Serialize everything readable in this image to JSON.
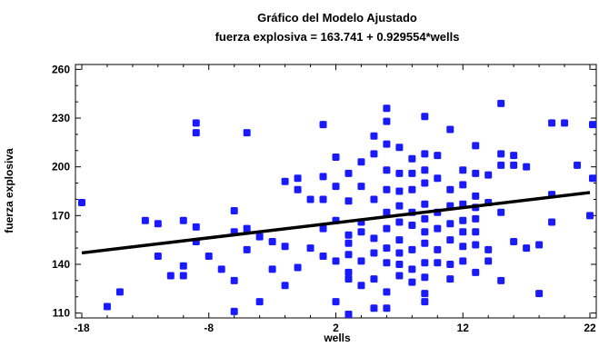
{
  "chart_data": {
    "type": "scatter",
    "title": "Gráfico del Modelo Ajustado",
    "subtitle": "fuerza explosiva = 163.741 + 0.929554*wells",
    "xlabel": "wells",
    "ylabel": "fuerza explosiva",
    "xlim": [
      -18.5,
      22.5
    ],
    "ylim": [
      107,
      263
    ],
    "xticks": [
      -18,
      -8,
      2,
      12,
      22
    ],
    "yticks": [
      110,
      140,
      170,
      200,
      230,
      260
    ],
    "grid": false,
    "point_color": "#1a1aff",
    "fit_color": "#000000",
    "fit_line": {
      "intercept": 163.741,
      "slope": 0.929554
    },
    "points": [
      [
        -18,
        178
      ],
      [
        -16,
        114
      ],
      [
        -15,
        123
      ],
      [
        -13,
        167
      ],
      [
        -12,
        165
      ],
      [
        -12,
        145
      ],
      [
        -11,
        133
      ],
      [
        -10,
        167
      ],
      [
        -10,
        139
      ],
      [
        -10,
        133
      ],
      [
        -9,
        227
      ],
      [
        -9,
        221
      ],
      [
        -9,
        163
      ],
      [
        -9,
        154
      ],
      [
        -8,
        145
      ],
      [
        -7,
        137
      ],
      [
        -6,
        173
      ],
      [
        -6,
        160
      ],
      [
        -6,
        130
      ],
      [
        -6,
        111
      ],
      [
        -5,
        221
      ],
      [
        -5,
        162
      ],
      [
        -5,
        149
      ],
      [
        -4,
        157
      ],
      [
        -4,
        117
      ],
      [
        -3,
        154
      ],
      [
        -3,
        137
      ],
      [
        -2,
        191
      ],
      [
        -2,
        151
      ],
      [
        -2,
        127
      ],
      [
        -1,
        193
      ],
      [
        -1,
        186
      ],
      [
        -1,
        138
      ],
      [
        0,
        180
      ],
      [
        0,
        150
      ],
      [
        1,
        226
      ],
      [
        1,
        194
      ],
      [
        1,
        180
      ],
      [
        1,
        162
      ],
      [
        1,
        145
      ],
      [
        2,
        206
      ],
      [
        2,
        188
      ],
      [
        2,
        167
      ],
      [
        2,
        142
      ],
      [
        2,
        117
      ],
      [
        3,
        196
      ],
      [
        3,
        179
      ],
      [
        3,
        158
      ],
      [
        3,
        153
      ],
      [
        3,
        146
      ],
      [
        3,
        135
      ],
      [
        3,
        131
      ],
      [
        3,
        109
      ],
      [
        4,
        203
      ],
      [
        4,
        188
      ],
      [
        4,
        166
      ],
      [
        4,
        160
      ],
      [
        4,
        142
      ],
      [
        4,
        127
      ],
      [
        5,
        219
      ],
      [
        5,
        208
      ],
      [
        5,
        180
      ],
      [
        5,
        156
      ],
      [
        5,
        147
      ],
      [
        5,
        131
      ],
      [
        5,
        113
      ],
      [
        6,
        236
      ],
      [
        6,
        228
      ],
      [
        6,
        214
      ],
      [
        6,
        198
      ],
      [
        6,
        186
      ],
      [
        6,
        172
      ],
      [
        6,
        162
      ],
      [
        6,
        150
      ],
      [
        6,
        141
      ],
      [
        6,
        123
      ],
      [
        6,
        113
      ],
      [
        7,
        212
      ],
      [
        7,
        196
      ],
      [
        7,
        185
      ],
      [
        7,
        176
      ],
      [
        7,
        166
      ],
      [
        7,
        155
      ],
      [
        7,
        147
      ],
      [
        7,
        140
      ],
      [
        7,
        133
      ],
      [
        8,
        205
      ],
      [
        8,
        196
      ],
      [
        8,
        186
      ],
      [
        8,
        172
      ],
      [
        8,
        164
      ],
      [
        8,
        149
      ],
      [
        8,
        137
      ],
      [
        8,
        129
      ],
      [
        9,
        231
      ],
      [
        9,
        208
      ],
      [
        9,
        198
      ],
      [
        9,
        190
      ],
      [
        9,
        177
      ],
      [
        9,
        168
      ],
      [
        9,
        160
      ],
      [
        9,
        153
      ],
      [
        9,
        141
      ],
      [
        9,
        132
      ],
      [
        9,
        122
      ],
      [
        9,
        117
      ],
      [
        10,
        207
      ],
      [
        10,
        193
      ],
      [
        10,
        172
      ],
      [
        10,
        162
      ],
      [
        10,
        149
      ],
      [
        10,
        141
      ],
      [
        11,
        223
      ],
      [
        11,
        186
      ],
      [
        11,
        176
      ],
      [
        11,
        165
      ],
      [
        11,
        155
      ],
      [
        11,
        140
      ],
      [
        11,
        131
      ],
      [
        12,
        198
      ],
      [
        12,
        189
      ],
      [
        12,
        177
      ],
      [
        12,
        167
      ],
      [
        12,
        160
      ],
      [
        12,
        151
      ],
      [
        12,
        142
      ],
      [
        13,
        213
      ],
      [
        13,
        196
      ],
      [
        13,
        182
      ],
      [
        13,
        175
      ],
      [
        13,
        168
      ],
      [
        13,
        160
      ],
      [
        13,
        152
      ],
      [
        13,
        135
      ],
      [
        14,
        195
      ],
      [
        14,
        178
      ],
      [
        14,
        149
      ],
      [
        14,
        142
      ],
      [
        15,
        239
      ],
      [
        15,
        208
      ],
      [
        15,
        201
      ],
      [
        15,
        172
      ],
      [
        15,
        130
      ],
      [
        16,
        207
      ],
      [
        16,
        201
      ],
      [
        16,
        154
      ],
      [
        17,
        200
      ],
      [
        17,
        150
      ],
      [
        18,
        152
      ],
      [
        18,
        122
      ],
      [
        19,
        227
      ],
      [
        19,
        183
      ],
      [
        19,
        166
      ],
      [
        20,
        227
      ],
      [
        21,
        201
      ],
      [
        22,
        170
      ],
      [
        24,
        226
      ],
      [
        24,
        193
      ]
    ]
  }
}
